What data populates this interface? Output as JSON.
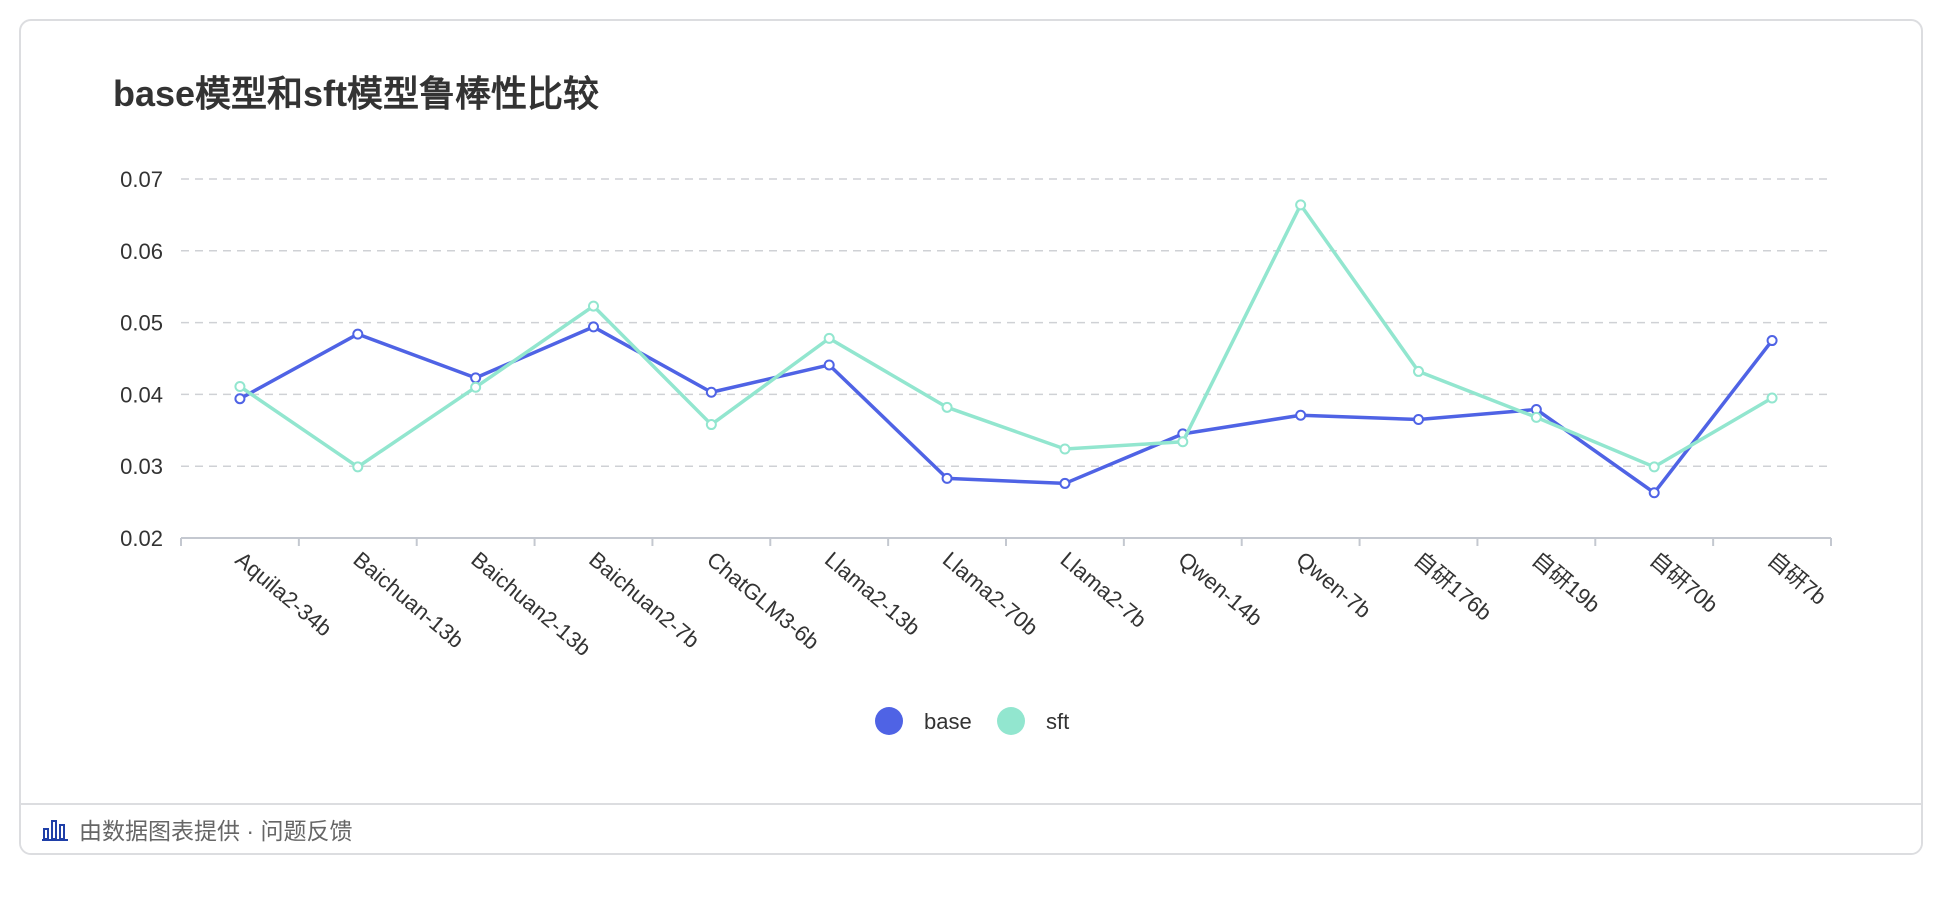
{
  "title": "base模型和sft模型鲁棒性比较",
  "footer": {
    "text": "由数据图表提供 · 问题反馈"
  },
  "colors": {
    "base": "#4f63e5",
    "sft": "#92e6cf",
    "grid": "#cfd1d5",
    "axis": "#c4c8d0",
    "text": "#333333"
  },
  "chart_data": {
    "type": "line",
    "title": "base模型和sft模型鲁棒性比较",
    "categories": [
      "Aquila2-34b",
      "Baichuan-13b",
      "Baichuan2-13b",
      "Baichuan2-7b",
      "ChatGLM3-6b",
      "Llama2-13b",
      "Llama2-70b",
      "Llama2-7b",
      "Qwen-14b",
      "Qwen-7b",
      "自研176b",
      "自研19b",
      "自研70b",
      "自研7b"
    ],
    "series": [
      {
        "name": "base",
        "values": [
          0.0394,
          0.0484,
          0.0423,
          0.0494,
          0.0403,
          0.0441,
          0.0283,
          0.0276,
          0.0345,
          0.0371,
          0.0365,
          0.0379,
          0.0263,
          0.0475
        ]
      },
      {
        "name": "sft",
        "values": [
          0.0411,
          0.0299,
          0.041,
          0.0523,
          0.0358,
          0.0478,
          0.0382,
          0.0324,
          0.0334,
          0.0664,
          0.0432,
          0.0368,
          0.0299,
          0.0395
        ]
      }
    ],
    "yticks": [
      "0.02",
      "0.03",
      "0.04",
      "0.05",
      "0.06",
      "0.07"
    ],
    "ylim": [
      0.02,
      0.07
    ],
    "grid": true,
    "legend": "bottom-center"
  }
}
